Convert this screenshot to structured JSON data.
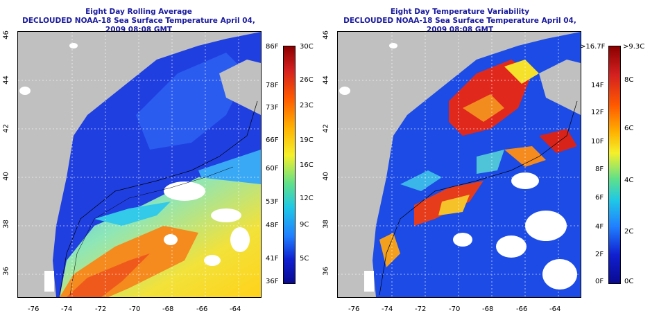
{
  "left_panel": {
    "title_line1": "Eight Day Rolling Average",
    "title_line2": "DECLOUDED NOAA-18 Sea Surface Temperature April 04, 2009 08:08 GMT",
    "colorbar_left_labels": [
      "86F",
      "78F",
      "73F",
      "66F",
      "60F",
      "53F",
      "48F",
      "41F",
      "36F"
    ],
    "colorbar_right_labels": [
      "30C",
      "26C",
      "23C",
      "19C",
      "16C",
      "12C",
      "9C",
      "5C"
    ]
  },
  "right_panel": {
    "title_line1": "Eight Day Temperature Variability",
    "title_line2": "DECLOUDED NOAA-18 Sea Surface Temperature April 04, 2009 08:08 GMT",
    "colorbar_left_labels": [
      ">16.7F",
      "14F",
      "12F",
      "10F",
      "8F",
      "6F",
      "4F",
      "2F",
      "0F"
    ],
    "colorbar_right_labels": [
      ">9.3C",
      "8C",
      "6C",
      "4C",
      "2C",
      "0C"
    ]
  },
  "axes": {
    "x_ticks": [
      "-76",
      "-74",
      "-72",
      "-70",
      "-68",
      "-66",
      "-64"
    ],
    "y_ticks": [
      "46",
      "44",
      "42",
      "40",
      "38",
      "36"
    ]
  },
  "colors": {
    "title": "#1a1a9e",
    "land": "#c0c0c0",
    "cloud": "#ffffff"
  }
}
